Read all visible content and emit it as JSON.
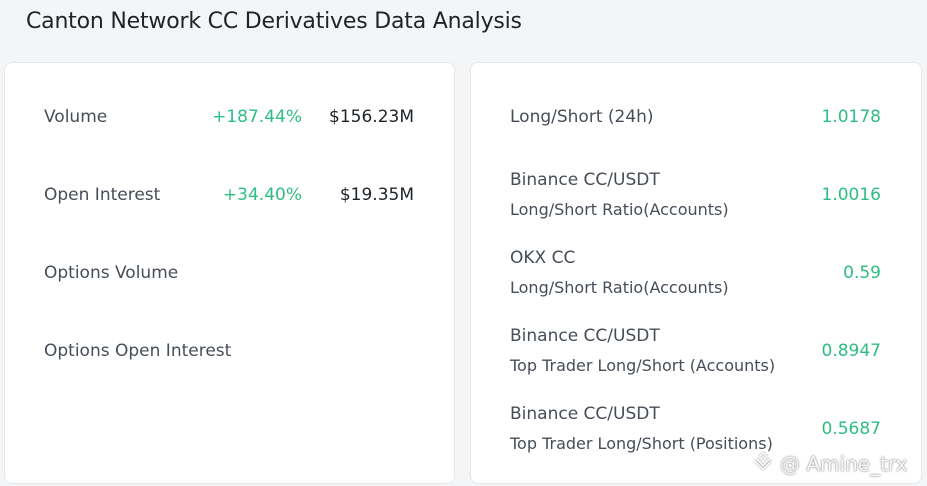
{
  "page": {
    "title": "Canton Network CC Derivatives Data Analysis"
  },
  "left_panel": {
    "rows": [
      {
        "label": "Volume",
        "change": "+187.44%",
        "value": "$156.23M"
      },
      {
        "label": "Open Interest",
        "change": "+34.40%",
        "value": "$19.35M"
      },
      {
        "label": "Options Volume",
        "change": "",
        "value": ""
      },
      {
        "label": "Options Open Interest",
        "change": "",
        "value": ""
      }
    ]
  },
  "right_panel": {
    "rows": [
      {
        "line1": "Long/Short (24h)",
        "line2": "",
        "value": "1.0178"
      },
      {
        "line1": "Binance CC/USDT",
        "line2": "Long/Short Ratio(Accounts)",
        "value": "1.0016"
      },
      {
        "line1": "OKX CC",
        "line2": "Long/Short Ratio(Accounts)",
        "value": "0.59"
      },
      {
        "line1": "Binance CC/USDT",
        "line2": "Top Trader Long/Short (Accounts)",
        "value": "0.8947"
      },
      {
        "line1": "Binance CC/USDT",
        "line2": "Top Trader Long/Short (Positions)",
        "value": "0.5687"
      }
    ]
  },
  "watermark": {
    "icon": "binance-square-icon",
    "text": "@ Amine_trx"
  },
  "colors": {
    "positive": "#2ebd85",
    "text_primary": "#1e2329",
    "text_secondary": "#474d57",
    "background": "#f4f5f6",
    "card": "#ffffff"
  }
}
